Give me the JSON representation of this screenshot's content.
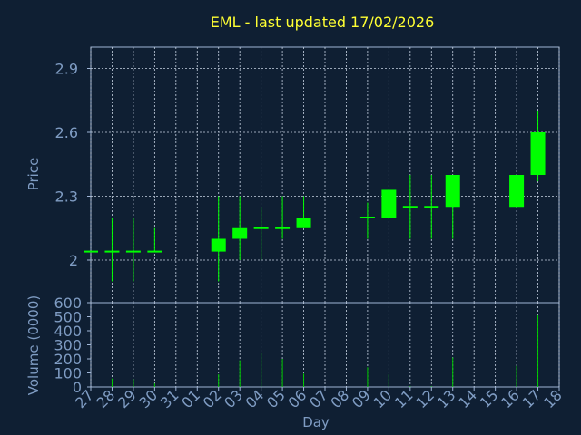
{
  "chart_data": [
    {
      "type": "candlestick",
      "title": "EML - last updated 17/02/2026",
      "ylabel": "Price",
      "ylim": [
        1.8,
        3.0
      ],
      "yticks": [
        "2",
        "2.3",
        "2.6",
        "2.9"
      ],
      "ytick_values": [
        2.0,
        2.3,
        2.6,
        2.9
      ],
      "grid": true,
      "up_color": "#00ff00",
      "wick_color": "#00ff00",
      "candles": [
        {
          "day": "27",
          "open": 2.04,
          "high": 2.04,
          "low": 2.04,
          "close": 2.04
        },
        {
          "day": "28",
          "open": 2.04,
          "high": 2.2,
          "low": 1.9,
          "close": 2.04
        },
        {
          "day": "29",
          "open": 2.04,
          "high": 2.2,
          "low": 1.9,
          "close": 2.04
        },
        {
          "day": "30",
          "open": 2.04,
          "high": 2.15,
          "low": 2.04,
          "close": 2.04
        },
        {
          "day": "02",
          "open": 2.04,
          "high": 2.3,
          "low": 1.9,
          "close": 2.1
        },
        {
          "day": "03",
          "open": 2.1,
          "high": 2.3,
          "low": 2.0,
          "close": 2.15
        },
        {
          "day": "04",
          "open": 2.15,
          "high": 2.25,
          "low": 2.0,
          "close": 2.15
        },
        {
          "day": "05",
          "open": 2.15,
          "high": 2.3,
          "low": 2.1,
          "close": 2.15
        },
        {
          "day": "06",
          "open": 2.15,
          "high": 2.3,
          "low": 2.15,
          "close": 2.2
        },
        {
          "day": "09",
          "open": 2.2,
          "high": 2.27,
          "low": 2.1,
          "close": 2.2
        },
        {
          "day": "10",
          "open": 2.2,
          "high": 2.33,
          "low": 2.2,
          "close": 2.33
        },
        {
          "day": "11",
          "open": 2.25,
          "high": 2.4,
          "low": 2.1,
          "close": 2.25
        },
        {
          "day": "12",
          "open": 2.25,
          "high": 2.4,
          "low": 2.1,
          "close": 2.25
        },
        {
          "day": "13",
          "open": 2.25,
          "high": 2.4,
          "low": 2.1,
          "close": 2.4
        },
        {
          "day": "16",
          "open": 2.25,
          "high": 2.4,
          "low": 2.25,
          "close": 2.4
        },
        {
          "day": "17",
          "open": 2.4,
          "high": 2.7,
          "low": 2.37,
          "close": 2.6
        }
      ]
    },
    {
      "type": "bar",
      "ylabel": "Volume (0000)",
      "xlabel": "Day",
      "ylim": [
        0,
        600
      ],
      "yticks": [
        "0",
        "100",
        "200",
        "300",
        "400",
        "500",
        "600"
      ],
      "ytick_values": [
        0,
        100,
        200,
        300,
        400,
        500,
        600
      ],
      "categories": [
        "27",
        "28",
        "29",
        "30",
        "31",
        "01",
        "02",
        "03",
        "04",
        "05",
        "06",
        "07",
        "08",
        "09",
        "10",
        "11",
        "12",
        "13",
        "14",
        "15",
        "16",
        "17",
        "18"
      ],
      "bar_color": "#00cc00",
      "values": [
        0,
        60,
        55,
        25,
        0,
        0,
        90,
        190,
        240,
        200,
        95,
        0,
        0,
        140,
        90,
        5,
        5,
        210,
        0,
        0,
        150,
        510,
        0
      ]
    }
  ]
}
